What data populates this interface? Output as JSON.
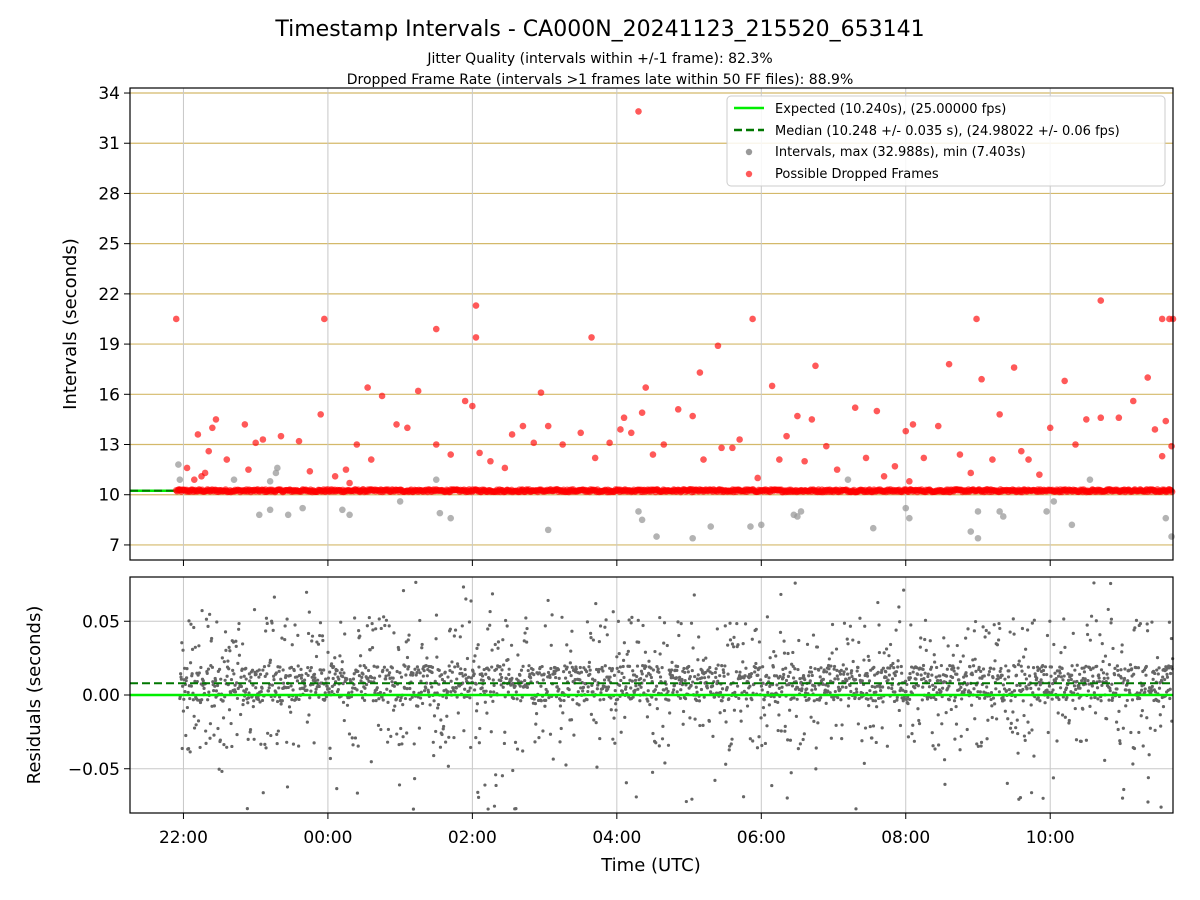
{
  "title": "Timestamp Intervals - CA000N_20241123_215520_653141",
  "subtitle_lines": [
    "Jitter Quality (intervals within +/-1 frame): 82.3%",
    "Dropped Frame Rate (intervals >1 frames late within 50 FF files): 88.9%"
  ],
  "colors": {
    "expected": "#00ee00",
    "median": "#007700",
    "intervals": "#999999",
    "dropped": "#ff0000",
    "residuals": "#666666",
    "hgrid_top": "#d4b96a",
    "grid": "#c8c8c8"
  },
  "chart_data": [
    {
      "type": "scatter",
      "panel": "intervals",
      "ylabel": "Intervals (seconds)",
      "ylim": [
        6.1,
        34.3
      ],
      "y_ticks": [
        7,
        10,
        13,
        16,
        19,
        22,
        25,
        28,
        31,
        34
      ],
      "y_tick_labels": [
        "7",
        "10",
        "13",
        "16",
        "19",
        "22",
        "25",
        "28",
        "31",
        "34"
      ],
      "x_range_hours": [
        21.26,
        35.7
      ],
      "grid": "both",
      "legend_position": "top-right",
      "legend": [
        {
          "label": "Expected (10.240s), (25.00000 fps)",
          "kind": "solid-line",
          "color": "#00ee00"
        },
        {
          "label": "Median (10.248 +/- 0.035 s), (24.98022 +/- 0.06 fps)",
          "kind": "dashed-line",
          "color": "#007700"
        },
        {
          "label": "Intervals, max (32.988s), min (7.403s)",
          "kind": "dot",
          "color": "#999999"
        },
        {
          "label": "Possible Dropped Frames",
          "kind": "dot",
          "color": "#ff0000"
        }
      ],
      "expected_line": 10.24,
      "median_line": 10.248,
      "baseline_band": {
        "x_start": 21.9,
        "x_end": 35.7,
        "y": 10.24
      },
      "intervals_points": [
        [
          21.93,
          11.8
        ],
        [
          21.95,
          10.9
        ],
        [
          22.7,
          10.9
        ],
        [
          23.2,
          10.8
        ],
        [
          23.28,
          11.3
        ],
        [
          23.3,
          11.6
        ],
        [
          23.05,
          8.8
        ],
        [
          23.2,
          9.1
        ],
        [
          23.45,
          8.8
        ],
        [
          23.65,
          9.2
        ],
        [
          24.2,
          9.1
        ],
        [
          24.3,
          8.8
        ],
        [
          25.0,
          9.6
        ],
        [
          25.5,
          10.9
        ],
        [
          25.55,
          8.9
        ],
        [
          25.7,
          8.6
        ],
        [
          27.05,
          7.9
        ],
        [
          28.3,
          9.0
        ],
        [
          28.35,
          8.5
        ],
        [
          28.55,
          7.5
        ],
        [
          29.05,
          7.4
        ],
        [
          29.3,
          8.1
        ],
        [
          29.85,
          8.1
        ],
        [
          30.0,
          8.2
        ],
        [
          30.45,
          8.8
        ],
        [
          30.5,
          8.7
        ],
        [
          30.55,
          9.0
        ],
        [
          31.2,
          10.9
        ],
        [
          31.55,
          8.0
        ],
        [
          32.0,
          9.2
        ],
        [
          32.05,
          8.6
        ],
        [
          32.9,
          7.8
        ],
        [
          33.0,
          7.4
        ],
        [
          33.0,
          9.0
        ],
        [
          33.3,
          9.0
        ],
        [
          33.35,
          8.7
        ],
        [
          33.95,
          9.0
        ],
        [
          34.05,
          9.6
        ],
        [
          34.3,
          8.2
        ],
        [
          34.55,
          10.9
        ],
        [
          35.6,
          8.6
        ],
        [
          35.68,
          7.5
        ]
      ],
      "dropped_points": [
        [
          21.95,
          10.3
        ],
        [
          22.05,
          11.6
        ],
        [
          22.15,
          10.9
        ],
        [
          22.2,
          13.6
        ],
        [
          22.25,
          11.1
        ],
        [
          22.3,
          11.3
        ],
        [
          22.35,
          12.6
        ],
        [
          22.4,
          14.0
        ],
        [
          22.45,
          14.5
        ],
        [
          22.6,
          12.1
        ],
        [
          22.85,
          14.2
        ],
        [
          23.0,
          13.1
        ],
        [
          23.1,
          13.3
        ],
        [
          23.35,
          13.5
        ],
        [
          23.6,
          13.2
        ],
        [
          23.9,
          14.8
        ],
        [
          24.1,
          11.1
        ],
        [
          24.25,
          11.5
        ],
        [
          24.3,
          10.7
        ],
        [
          24.4,
          13.0
        ],
        [
          24.55,
          16.4
        ],
        [
          24.6,
          12.1
        ],
        [
          24.75,
          15.9
        ],
        [
          24.95,
          14.2
        ],
        [
          25.1,
          14.0
        ],
        [
          25.25,
          16.2
        ],
        [
          25.5,
          13.0
        ],
        [
          25.7,
          12.4
        ],
        [
          25.9,
          15.6
        ],
        [
          26.0,
          15.3
        ],
        [
          26.1,
          12.5
        ],
        [
          26.25,
          12.0
        ],
        [
          26.45,
          11.6
        ],
        [
          26.55,
          13.6
        ],
        [
          26.7,
          14.1
        ],
        [
          26.85,
          13.1
        ],
        [
          27.05,
          14.1
        ],
        [
          27.25,
          13.0
        ],
        [
          27.5,
          13.7
        ],
        [
          27.7,
          12.2
        ],
        [
          27.9,
          13.1
        ],
        [
          28.1,
          14.6
        ],
        [
          28.2,
          13.7
        ],
        [
          28.35,
          14.9
        ],
        [
          28.5,
          12.4
        ],
        [
          28.65,
          13.0
        ],
        [
          28.85,
          15.1
        ],
        [
          29.05,
          14.7
        ],
        [
          29.2,
          12.1
        ],
        [
          29.45,
          12.8
        ],
        [
          29.7,
          13.3
        ],
        [
          29.95,
          11.0
        ],
        [
          30.15,
          16.5
        ],
        [
          30.25,
          12.1
        ],
        [
          30.35,
          13.5
        ],
        [
          30.5,
          14.7
        ],
        [
          30.6,
          12.0
        ],
        [
          30.7,
          14.5
        ],
        [
          30.9,
          12.9
        ],
        [
          31.05,
          11.5
        ],
        [
          31.3,
          15.2
        ],
        [
          31.45,
          12.2
        ],
        [
          31.6,
          15.0
        ],
        [
          31.7,
          11.1
        ],
        [
          31.85,
          11.7
        ],
        [
          32.0,
          13.8
        ],
        [
          32.1,
          14.2
        ],
        [
          32.25,
          12.2
        ],
        [
          32.45,
          14.1
        ],
        [
          32.6,
          17.8
        ],
        [
          32.75,
          12.4
        ],
        [
          32.9,
          11.3
        ],
        [
          33.05,
          16.9
        ],
        [
          33.2,
          12.1
        ],
        [
          33.3,
          14.8
        ],
        [
          33.5,
          17.6
        ],
        [
          33.6,
          12.6
        ],
        [
          33.7,
          12.1
        ],
        [
          33.85,
          11.2
        ],
        [
          34.0,
          14.0
        ],
        [
          34.2,
          16.8
        ],
        [
          34.35,
          13.0
        ],
        [
          34.5,
          14.5
        ],
        [
          34.7,
          14.6
        ],
        [
          34.95,
          14.6
        ],
        [
          35.15,
          15.6
        ],
        [
          35.35,
          17.0
        ],
        [
          35.45,
          13.9
        ],
        [
          35.55,
          12.3
        ],
        [
          35.6,
          14.4
        ],
        [
          35.68,
          12.9
        ],
        [
          21.9,
          20.5
        ],
        [
          23.95,
          20.5
        ],
        [
          26.05,
          19.4
        ],
        [
          27.65,
          19.4
        ],
        [
          29.4,
          18.9
        ],
        [
          29.88,
          20.5
        ],
        [
          30.75,
          17.7
        ],
        [
          32.98,
          20.5
        ],
        [
          34.7,
          21.6
        ],
        [
          35.55,
          20.5
        ],
        [
          35.65,
          20.5
        ],
        [
          35.7,
          20.5
        ],
        [
          25.5,
          19.9
        ],
        [
          26.05,
          21.3
        ],
        [
          28.3,
          32.9
        ],
        [
          28.4,
          16.4
        ],
        [
          29.15,
          17.3
        ],
        [
          32.05,
          10.8
        ],
        [
          22.9,
          11.5
        ],
        [
          23.75,
          11.4
        ],
        [
          26.95,
          16.1
        ],
        [
          28.05,
          13.9
        ],
        [
          29.6,
          12.8
        ]
      ],
      "note_band_density": "dense row of dropped-frame points near 10.24 s across the full time range"
    },
    {
      "type": "scatter",
      "panel": "residuals",
      "ylabel": "Residuals (seconds)",
      "xlabel": "Time (UTC)",
      "ylim": [
        -0.08,
        0.08
      ],
      "y_ticks": [
        0.05,
        0.0,
        -0.05
      ],
      "y_tick_labels": [
        "0.05",
        "0.00",
        "−0.05"
      ],
      "x_ticks_hours": [
        22,
        24,
        26,
        28,
        30,
        32,
        34
      ],
      "x_tick_labels": [
        "22:00",
        "00:00",
        "02:00",
        "04:00",
        "06:00",
        "08:00",
        "10:00"
      ],
      "x_range_hours": [
        21.26,
        35.7
      ],
      "expected_line": 0.0,
      "median_line": 0.008,
      "residual_spread": {
        "x_start": 21.95,
        "x_end": 35.7,
        "center": 0.008,
        "typical": 0.012,
        "max_abs": 0.078
      }
    }
  ]
}
